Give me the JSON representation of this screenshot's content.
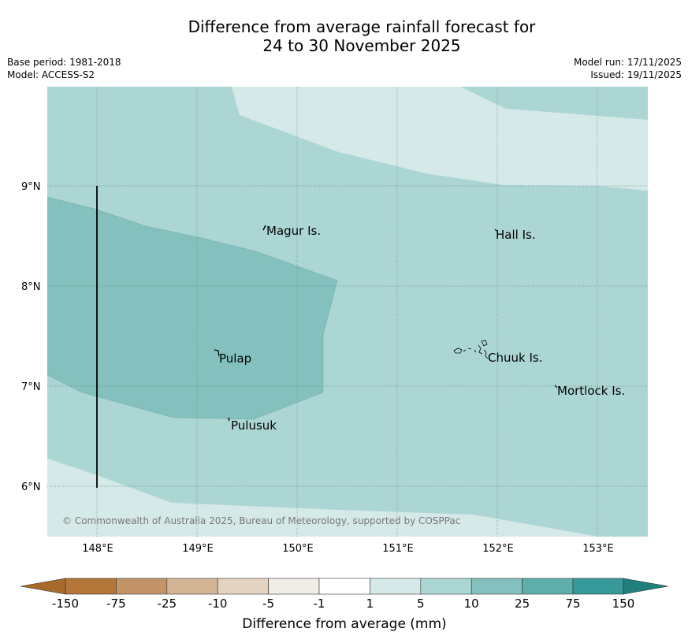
{
  "header": {
    "title_line1": "Difference from average rainfall forecast for",
    "title_line2": "24 to 30 November 2025",
    "base_period": "Base period: 1981-2018",
    "model": "Model: ACCESS-S2",
    "model_run": "Model run: 17/11/2025",
    "issued": "Issued: 19/11/2025"
  },
  "map": {
    "lat_labels": [
      "9°N",
      "8°N",
      "7°N",
      "6°N"
    ],
    "lon_labels": [
      "148°E",
      "149°E",
      "150°E",
      "151°E",
      "152°E",
      "153°E"
    ],
    "places": [
      "Magur Is.",
      "Hall Is.",
      "Pulap",
      "Chuuk Is.",
      "Mortlock Is.",
      "Pulusuk"
    ],
    "copyright": "© Commonwealth of Australia 2025, Bureau of Meteorology, supported by COSPPac",
    "colors": {
      "band_1_5": "#d5e9e8",
      "band_5_10": "#acd6d4",
      "band_10_25": "#84c1be",
      "grid": "#6b8f8d"
    }
  },
  "colorbar": {
    "ticks": [
      "-150",
      "-75",
      "-25",
      "-10",
      "-5",
      "-1",
      "1",
      "5",
      "10",
      "25",
      "75",
      "150"
    ],
    "colors": [
      "#a86a2c",
      "#b37538",
      "#c29468",
      "#d3b494",
      "#e5d3c1",
      "#f0ede6",
      "#ffffff",
      "#d5e9e8",
      "#acd6d4",
      "#84c1be",
      "#5eaeab",
      "#38999a",
      "#207e7c"
    ],
    "label": "Difference from average (mm)"
  }
}
